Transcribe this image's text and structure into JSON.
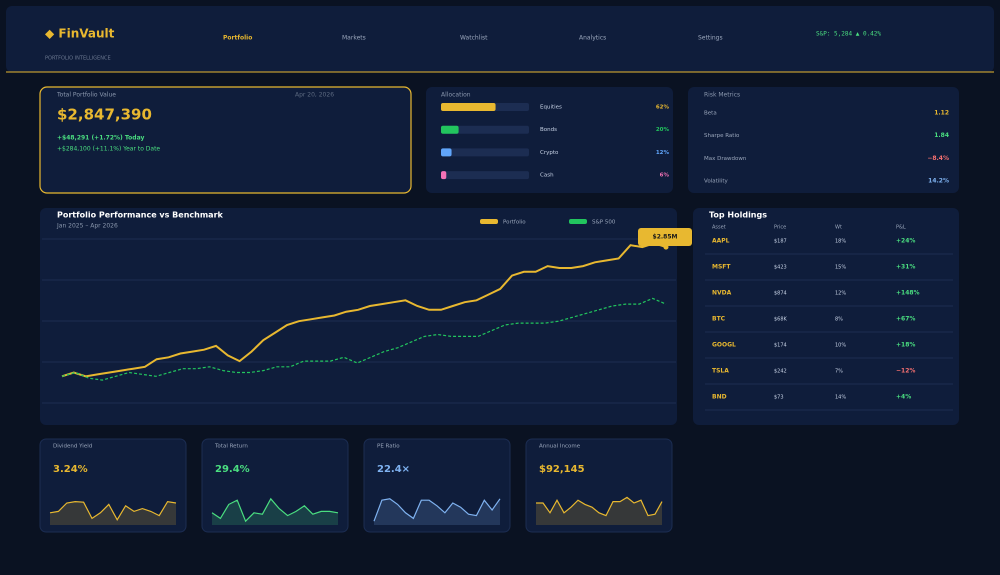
{
  "header": {
    "brand": "◆ FinVault",
    "tagline": "PORTFOLIO INTELLIGENCE",
    "nav": [
      "Portfolio",
      "Markets",
      "Watchlist",
      "Analytics",
      "Settings"
    ],
    "ticker": "S&P: 5,284  ▲ 0.42%"
  },
  "summary": {
    "label": "Total Portfolio Value",
    "date": "Apr 20, 2026",
    "value": "$2,847,390",
    "today": "+$48,291  (+1.72%)  Today",
    "ytd": "+$284,100  (+11.1%)  Year to Date"
  },
  "allocation": {
    "title": "Allocation",
    "categories": [
      "Equities",
      "Bonds",
      "Crypto",
      "Cash"
    ],
    "values": [
      62,
      20,
      12,
      6
    ],
    "value_labels": [
      "62%",
      "20%",
      "12%",
      "6%"
    ],
    "colors": [
      "#e8b830",
      "#22c55e",
      "#60a5fa",
      "#f472b6"
    ]
  },
  "risk": {
    "title": "Risk Metrics",
    "rows": [
      {
        "label": "Beta",
        "value": "1.12",
        "color": "#e8b830"
      },
      {
        "label": "Sharpe Ratio",
        "value": "1.84",
        "color": "#4ade80"
      },
      {
        "label": "Max Drawdown",
        "value": "−8.4%",
        "color": "#f87171"
      },
      {
        "label": "Volatility",
        "value": "14.2%",
        "color": "#7fb2f0"
      }
    ]
  },
  "chart_data": {
    "type": "line",
    "title": "Portfolio Performance vs Benchmark",
    "subtitle": "Jan 2025 – Apr 2026",
    "annotation": "$2.85M",
    "ylim": [
      0,
      100
    ],
    "series": [
      {
        "name": "Portfolio",
        "color": "#e8b830",
        "values": [
          23,
          25,
          23,
          24,
          25,
          26,
          27,
          28,
          32,
          33,
          35,
          36,
          37,
          39,
          34,
          31,
          36,
          42,
          46,
          50,
          52,
          53,
          54,
          55,
          57,
          58,
          60,
          61,
          62,
          63,
          60,
          58,
          58,
          60,
          62,
          63,
          66,
          69,
          76,
          78,
          78,
          81,
          80,
          80,
          81,
          83,
          84,
          85,
          92,
          91,
          93,
          91
        ]
      },
      {
        "name": "S&P 500",
        "color": "#22c55e",
        "values": [
          23,
          25,
          22,
          21,
          23,
          25,
          24,
          23,
          25,
          27,
          27,
          28,
          26,
          25,
          25,
          26,
          28,
          28,
          31,
          31,
          31,
          33,
          30,
          33,
          36,
          38,
          41,
          44,
          45,
          44,
          44,
          44,
          47,
          50,
          51,
          51,
          51,
          52,
          54,
          56,
          58,
          60,
          61,
          61,
          64,
          61
        ]
      }
    ]
  },
  "holdings": {
    "title": "Top Holdings",
    "headers": [
      "Asset",
      "Price",
      "Wt",
      "P&L"
    ],
    "rows": [
      {
        "asset": "AAPL",
        "price": "$187",
        "wt": "18%",
        "pnl": "+24%",
        "pnl_color": "#4ade80"
      },
      {
        "asset": "MSFT",
        "price": "$423",
        "wt": "15%",
        "pnl": "+31%",
        "pnl_color": "#4ade80"
      },
      {
        "asset": "NVDA",
        "price": "$874",
        "wt": "12%",
        "pnl": "+148%",
        "pnl_color": "#4ade80"
      },
      {
        "asset": "BTC",
        "price": "$68K",
        "wt": "8%",
        "pnl": "+67%",
        "pnl_color": "#4ade80"
      },
      {
        "asset": "GOOGL",
        "price": "$174",
        "wt": "10%",
        "pnl": "+18%",
        "pnl_color": "#4ade80"
      },
      {
        "asset": "TSLA",
        "price": "$242",
        "wt": "7%",
        "pnl": "−12%",
        "pnl_color": "#f87171"
      },
      {
        "asset": "BND",
        "price": "$73",
        "wt": "14%",
        "pnl": "+4%",
        "pnl_color": "#4ade80"
      }
    ]
  },
  "cards": [
    {
      "label": "Dividend Yield",
      "value": "3.24%",
      "color": "#e8b830",
      "spark": [
        40,
        45,
        75,
        80,
        78,
        20,
        40,
        70,
        15,
        65,
        45,
        55,
        45,
        30,
        80,
        75
      ]
    },
    {
      "label": "Total Return",
      "value": "29.4%",
      "color": "#4ade80",
      "spark": [
        40,
        20,
        70,
        85,
        10,
        40,
        35,
        90,
        55,
        30,
        45,
        65,
        35,
        45,
        45,
        40
      ]
    },
    {
      "label": "PE Ratio",
      "value": "22.4×",
      "color": "#7fb2f0",
      "spark": [
        10,
        85,
        90,
        70,
        40,
        20,
        85,
        85,
        65,
        40,
        75,
        60,
        35,
        30,
        85,
        50,
        90
      ]
    },
    {
      "label": "Annual Income",
      "value": "$92,145",
      "color": "#e8b830",
      "spark": [
        75,
        75,
        40,
        85,
        40,
        60,
        85,
        70,
        60,
        40,
        30,
        80,
        80,
        95,
        75,
        85,
        30,
        35,
        80
      ]
    }
  ]
}
